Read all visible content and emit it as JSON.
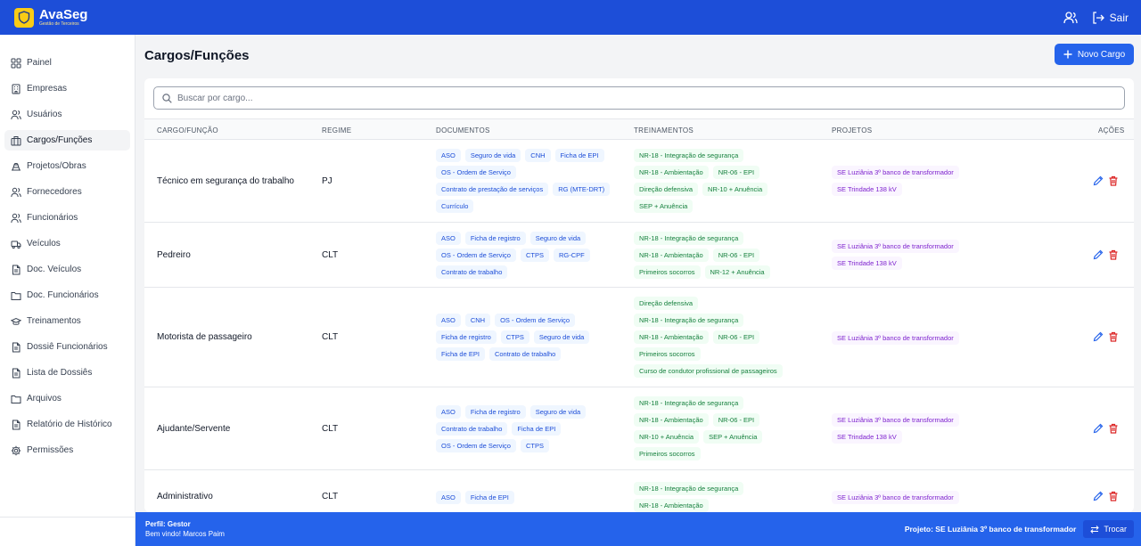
{
  "app": {
    "name": "AvaSeg",
    "subtitle": "Gestão de Terceiros"
  },
  "header": {
    "sair_label": "Sair"
  },
  "sidebar": {
    "items": [
      {
        "label": "Painel",
        "icon": "grid-icon"
      },
      {
        "label": "Empresas",
        "icon": "building-icon"
      },
      {
        "label": "Usuários",
        "icon": "users-icon"
      },
      {
        "label": "Cargos/Funções",
        "icon": "briefcase-icon",
        "active": true
      },
      {
        "label": "Projetos/Obras",
        "icon": "construction-icon"
      },
      {
        "label": "Fornecedores",
        "icon": "users-icon"
      },
      {
        "label": "Funcionários",
        "icon": "users-icon"
      },
      {
        "label": "Veículos",
        "icon": "truck-icon"
      },
      {
        "label": "Doc. Veículos",
        "icon": "file-icon"
      },
      {
        "label": "Doc. Funcionários",
        "icon": "folder-icon"
      },
      {
        "label": "Treinamentos",
        "icon": "graduation-cap-icon"
      },
      {
        "label": "Dossiê Funcionários",
        "icon": "file-icon"
      },
      {
        "label": "Lista de Dossiês",
        "icon": "file-icon"
      },
      {
        "label": "Arquivos",
        "icon": "folder-icon"
      },
      {
        "label": "Relatório de Histórico",
        "icon": "file-icon"
      },
      {
        "label": "Permissões",
        "icon": "gear-icon"
      }
    ]
  },
  "page": {
    "title": "Cargos/Funções",
    "new_button": "Novo Cargo",
    "search_placeholder": "Buscar por cargo..."
  },
  "table": {
    "headers": {
      "cargo": "CARGO/FUNÇÃO",
      "regime": "REGIME",
      "documentos": "DOCUMENTOS",
      "treinamentos": "TREINAMENTOS",
      "projetos": "PROJETOS",
      "acoes": "AÇÕES"
    },
    "rows": [
      {
        "cargo": "Técnico em segurança do trabalho",
        "regime": "PJ",
        "documentos": [
          [
            "ASO",
            "Seguro de vida",
            "CNH",
            "Ficha de EPI"
          ],
          [
            "OS - Ordem de Serviço"
          ],
          [
            "Contrato de prestação de serviços",
            "RG (MTE-DRT)"
          ],
          [
            "Currículo"
          ]
        ],
        "treinamentos": [
          [
            "NR-18 - Integração de segurança"
          ],
          [
            "NR-18 - Ambientação",
            "NR-06 - EPI"
          ],
          [
            "Direção defensiva",
            "NR-10 + Anuência"
          ],
          [
            "SEP + Anuência"
          ]
        ],
        "projetos": [
          [
            "SE Luziânia 3º banco de transformador"
          ],
          [
            "SE Trindade 138 kV"
          ]
        ]
      },
      {
        "cargo": "Pedreiro",
        "regime": "CLT",
        "documentos": [
          [
            "ASO",
            "Ficha de registro",
            "Seguro de vida"
          ],
          [
            "OS - Ordem de Serviço",
            "CTPS",
            "RG-CPF"
          ],
          [
            "Contrato de trabalho"
          ]
        ],
        "treinamentos": [
          [
            "NR-18 - Integração de segurança"
          ],
          [
            "NR-18 - Ambientação",
            "NR-06 - EPI"
          ],
          [
            "Primeiros socorros",
            "NR-12 + Anuência"
          ]
        ],
        "projetos": [
          [
            "SE Luziânia 3º banco de transformador"
          ],
          [
            "SE Trindade 138 kV"
          ]
        ]
      },
      {
        "cargo": "Motorista de passageiro",
        "regime": "CLT",
        "documentos": [
          [
            "ASO",
            "CNH",
            "OS - Ordem de Serviço"
          ],
          [
            "Ficha de registro",
            "CTPS",
            "Seguro de vida"
          ],
          [
            "Ficha de EPI",
            "Contrato de trabalho"
          ]
        ],
        "treinamentos": [
          [
            "Direção defensiva"
          ],
          [
            "NR-18 - Integração de segurança"
          ],
          [
            "NR-18 - Ambientação",
            "NR-06 - EPI"
          ],
          [
            "Primeiros socorros"
          ],
          [
            "Curso de condutor profissional de passageiros"
          ]
        ],
        "projetos": [
          [
            "SE Luziânia 3º banco de transformador"
          ]
        ]
      },
      {
        "cargo": "Ajudante/Servente",
        "regime": "CLT",
        "documentos": [
          [
            "ASO",
            "Ficha de registro",
            "Seguro de vida"
          ],
          [
            "Contrato de trabalho",
            "Ficha de EPI"
          ],
          [
            "OS - Ordem de Serviço",
            "CTPS"
          ]
        ],
        "treinamentos": [
          [
            "NR-18 - Integração de segurança"
          ],
          [
            "NR-18 - Ambientação",
            "NR-06 - EPI"
          ],
          [
            "NR-10 + Anuência",
            "SEP + Anuência"
          ],
          [
            "Primeiros socorros"
          ]
        ],
        "projetos": [
          [
            "SE Luziânia 3º banco de transformador"
          ],
          [
            "SE Trindade 138 kV"
          ]
        ]
      },
      {
        "cargo": "Administrativo",
        "regime": "CLT",
        "documentos": [
          [
            "ASO",
            "Ficha de EPI"
          ]
        ],
        "treinamentos": [
          [
            "NR-18 - Integração de segurança"
          ],
          [
            "NR-18 - Ambientação"
          ]
        ],
        "projetos": [
          [
            "SE Luziânia 3º banco de transformador"
          ]
        ]
      }
    ]
  },
  "footer": {
    "perfil": "Perfil: Gestor",
    "welcome": "Bem vindo! Marcos Paim",
    "projeto": "Projeto: SE Luziânia 3º banco de transformador",
    "trocar": "Trocar"
  }
}
